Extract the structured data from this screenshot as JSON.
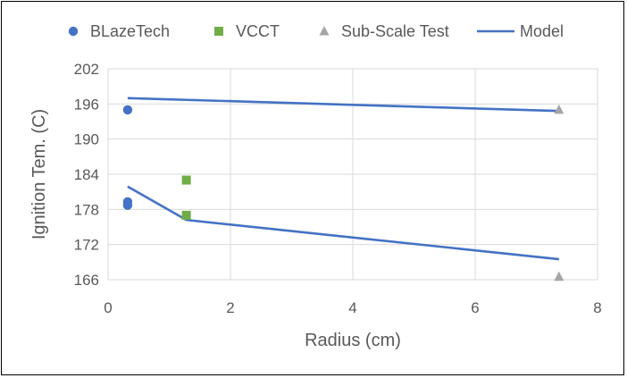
{
  "chart_data": {
    "type": "scatter",
    "xlabel": "Radius (cm)",
    "ylabel": "Ignition Tem. (C)",
    "xlim": [
      0,
      8
    ],
    "ylim": [
      166,
      202
    ],
    "x_ticks": [
      "0",
      "2",
      "4",
      "6",
      "8"
    ],
    "y_ticks": [
      "166",
      "172",
      "178",
      "184",
      "190",
      "196",
      "202"
    ],
    "grid": true,
    "legend_position": "top",
    "series": [
      {
        "name": "BLazeTech",
        "kind": "scatter",
        "marker": "circle",
        "color": "#4472C4",
        "points": [
          [
            0.32,
            195
          ],
          [
            0.32,
            179.3
          ],
          [
            0.32,
            178.7
          ]
        ]
      },
      {
        "name": "VCCT",
        "kind": "scatter",
        "marker": "square",
        "color": "#70AD47",
        "points": [
          [
            1.28,
            183
          ],
          [
            1.28,
            177
          ]
        ]
      },
      {
        "name": "Sub-Scale Test",
        "kind": "scatter",
        "marker": "triangle",
        "color": "#A5A5A5",
        "points": [
          [
            7.37,
            195
          ],
          [
            7.37,
            166.5
          ]
        ]
      },
      {
        "name": "Model",
        "kind": "line",
        "color": "#4472C4",
        "lines": [
          [
            [
              0.32,
              197
            ],
            [
              7.37,
              194.8
            ]
          ],
          [
            [
              0.32,
              181.9
            ],
            [
              1.28,
              176.2
            ],
            [
              7.37,
              169.5
            ]
          ]
        ]
      }
    ]
  }
}
